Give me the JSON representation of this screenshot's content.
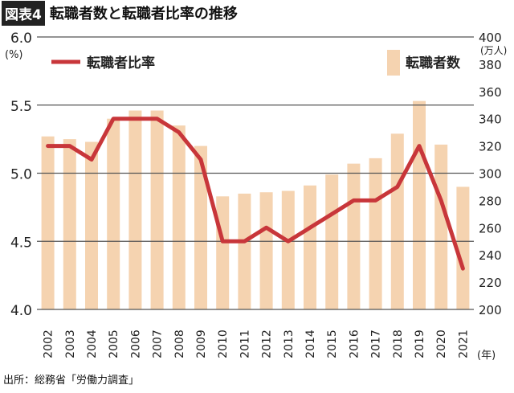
{
  "header": {
    "tag": "図表4",
    "title": "転職者数と転職者比率の推移"
  },
  "source": "出所：総務省「労働力調査」",
  "chart_data": {
    "type": "bar+line",
    "categories": [
      "2002",
      "2003",
      "2004",
      "2005",
      "2006",
      "2007",
      "2008",
      "2009",
      "2010",
      "2011",
      "2012",
      "2013",
      "2014",
      "2015",
      "2016",
      "2017",
      "2018",
      "2019",
      "2020",
      "2021"
    ],
    "series": [
      {
        "name": "転職者数",
        "type": "bar",
        "axis": "right",
        "values": [
          327,
          325,
          323,
          340,
          346,
          346,
          335,
          320,
          283,
          285,
          286,
          287,
          291,
          299,
          307,
          311,
          329,
          353,
          321,
          290
        ]
      },
      {
        "name": "転職者比率",
        "type": "line",
        "axis": "left",
        "values": [
          5.2,
          5.2,
          5.1,
          5.4,
          5.4,
          5.4,
          5.3,
          5.1,
          4.5,
          4.5,
          4.6,
          4.5,
          4.6,
          4.7,
          4.8,
          4.8,
          4.9,
          5.2,
          4.8,
          4.3
        ]
      }
    ],
    "left_axis": {
      "unit": "(%)",
      "ylim": [
        4.0,
        6.0
      ],
      "ticks": [
        "4.0",
        "4.5",
        "5.0",
        "5.5",
        "6.0"
      ]
    },
    "right_axis": {
      "unit": "(万人)",
      "ylim": [
        200,
        400
      ],
      "ticks": [
        "200",
        "220",
        "240",
        "260",
        "280",
        "300",
        "320",
        "340",
        "360",
        "380",
        "400"
      ]
    },
    "x_unit": "(年)",
    "legend_placement": "top",
    "grid": "horizontal at left ticks",
    "colors": {
      "bar": "#f5d3b0",
      "line": "#c8363a"
    }
  }
}
